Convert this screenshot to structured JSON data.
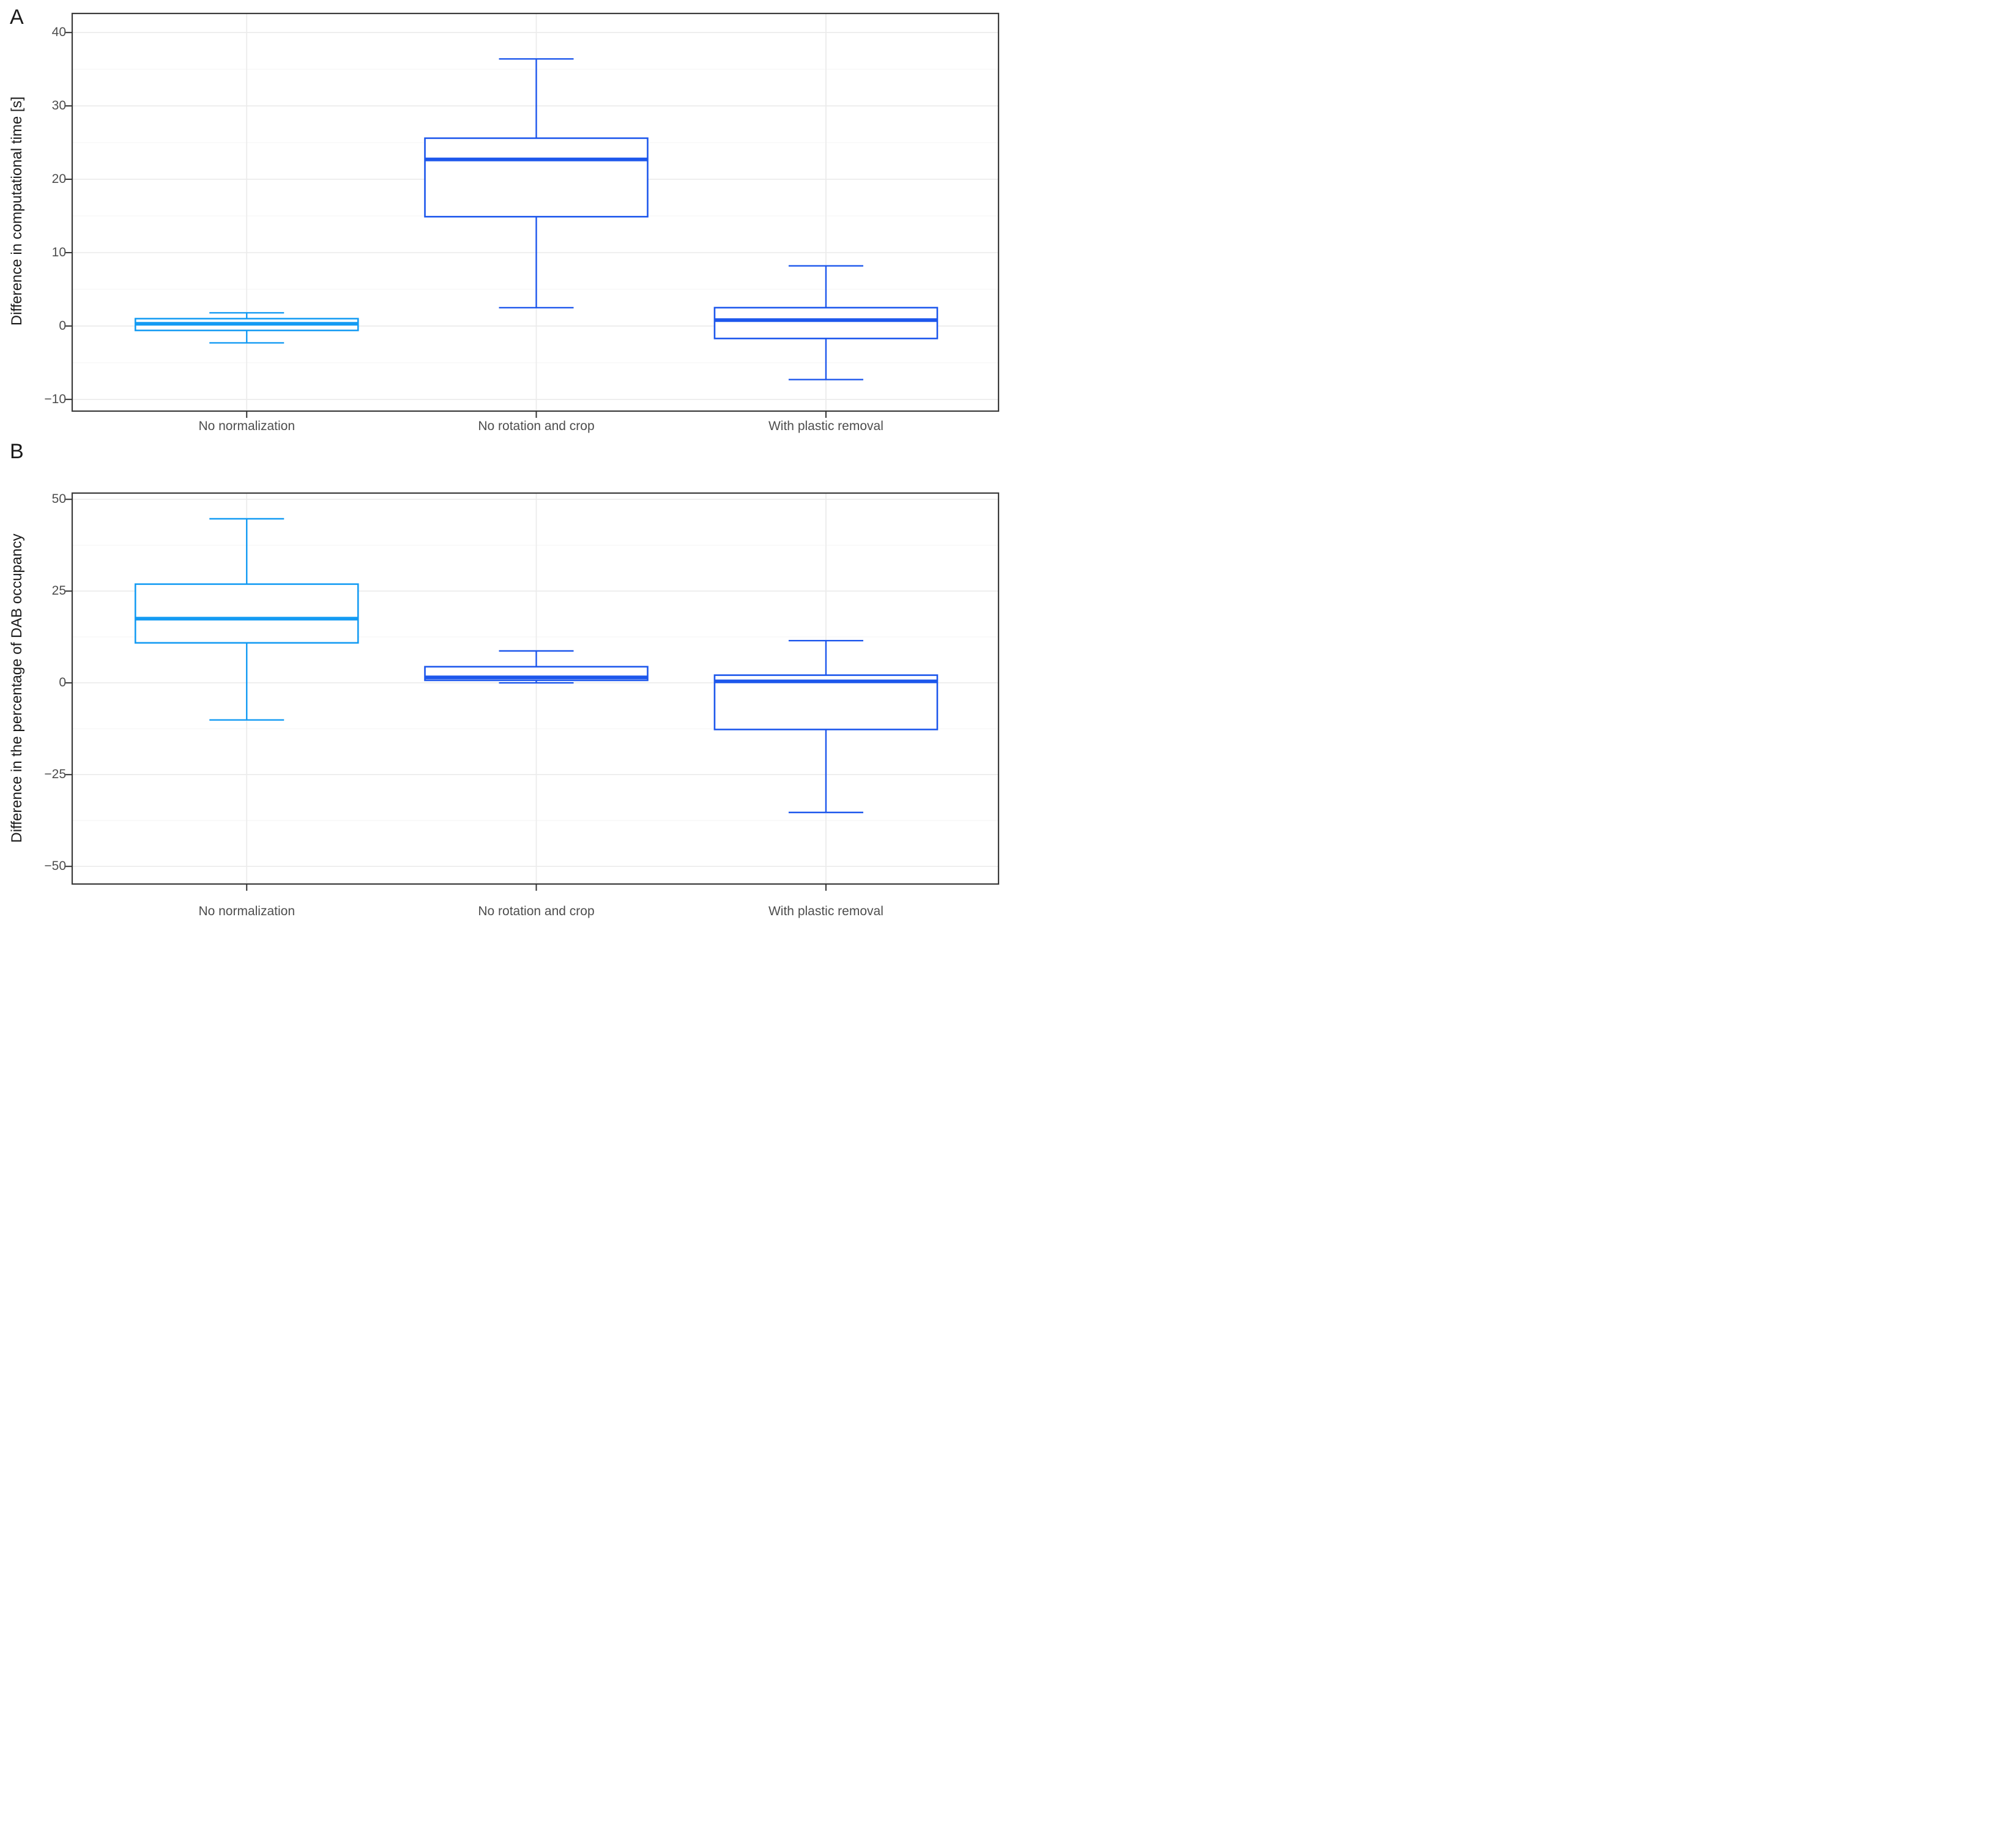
{
  "colors": {
    "azure_box": "#149BF3",
    "royal_box": "#1D57EC",
    "box_fill": "#FFFFFF",
    "grid_major": "#EBEBEB",
    "grid_minor": "#F5F5F5",
    "panel_border": "#3B3B3B",
    "tick_mark": "#333333",
    "tick_label": "#4D4D4D",
    "axis_title": "#1A1A1A",
    "background": "#FFFFFF"
  },
  "chart_data": [
    {
      "type": "boxplot",
      "panel_label": "A",
      "title": "",
      "xlabel": "",
      "ylabel": "Difference in computational time [s]",
      "categories": [
        "No normalization",
        "No rotation and crop",
        "With plastic removal"
      ],
      "series": [
        {
          "name": "No normalization",
          "color_key": "azure_box",
          "whisker_low": -2.3,
          "q1": -0.6,
          "median": 0.3,
          "q3": 1.0,
          "whisker_high": 1.8
        },
        {
          "name": "No rotation and crop",
          "color_key": "royal_box",
          "whisker_low": 2.5,
          "q1": 14.9,
          "median": 22.7,
          "q3": 25.6,
          "whisker_high": 36.4
        },
        {
          "name": "With plastic removal",
          "color_key": "royal_box",
          "whisker_low": -7.3,
          "q1": -1.7,
          "median": 0.8,
          "q3": 2.5,
          "whisker_high": 8.2
        }
      ],
      "outliers": [],
      "ylim": [
        -11.6,
        42.6
      ],
      "yticks": [
        40,
        30,
        20,
        10,
        0,
        -10
      ],
      "ytick_labels": [
        "40",
        "30",
        "20",
        "10",
        "0",
        "−10"
      ],
      "yticks_minor": [
        35,
        25,
        15,
        5,
        -5
      ],
      "grid": true,
      "legend": "none"
    },
    {
      "type": "boxplot",
      "panel_label": "B",
      "title": "",
      "xlabel": "",
      "ylabel": "Difference in the percentage of DAB occupancy",
      "categories": [
        "No normalization",
        "No rotation and crop",
        "With plastic removal"
      ],
      "series": [
        {
          "name": "No normalization",
          "color_key": "azure_box",
          "whisker_low": -10.1,
          "q1": 10.9,
          "median": 17.5,
          "q3": 26.9,
          "whisker_high": 44.7
        },
        {
          "name": "No rotation and crop",
          "color_key": "royal_box",
          "whisker_low": 0.0,
          "q1": 0.7,
          "median": 1.5,
          "q3": 4.4,
          "whisker_high": 8.7
        },
        {
          "name": "With plastic removal",
          "color_key": "royal_box",
          "whisker_low": -35.3,
          "q1": -12.7,
          "median": 0.4,
          "q3": 2.1,
          "whisker_high": 11.5
        }
      ],
      "outliers": [],
      "ylim": [
        -54.8,
        51.7
      ],
      "yticks": [
        50,
        25,
        0,
        -25,
        -50
      ],
      "ytick_labels": [
        "50",
        "25",
        "0",
        "−25",
        "−50"
      ],
      "yticks_minor": [
        37.5,
        12.5,
        -12.5,
        -37.5
      ],
      "grid": true,
      "legend": "none"
    }
  ]
}
